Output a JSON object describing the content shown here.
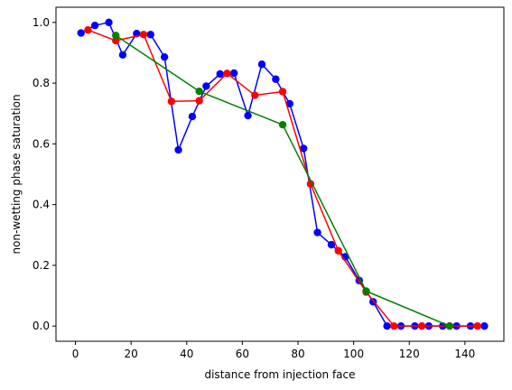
{
  "chart_data": {
    "type": "line",
    "title": "",
    "xlabel": "distance from injection face",
    "ylabel": "non-wetting phase saturation",
    "xlim": [
      -7,
      154
    ],
    "ylim": [
      -0.05,
      1.05
    ],
    "xticks": [
      0,
      20,
      40,
      60,
      80,
      100,
      120,
      140
    ],
    "yticks": [
      0.0,
      0.2,
      0.4,
      0.6,
      0.8,
      1.0
    ],
    "xtick_labels": [
      "0",
      "20",
      "40",
      "60",
      "80",
      "100",
      "120",
      "140"
    ],
    "ytick_labels": [
      "0.0",
      "0.2",
      "0.4",
      "0.6",
      "0.8",
      "1.0"
    ],
    "grid": false,
    "legend": "none",
    "series": [
      {
        "color": "#0000ff",
        "x": [
          2,
          7,
          12,
          17,
          22,
          27,
          32,
          37,
          42,
          47,
          52,
          57,
          62,
          67,
          72,
          77,
          82,
          87,
          92,
          97,
          102,
          107,
          112,
          117,
          122,
          127,
          132,
          137,
          142,
          147
        ],
        "y": [
          0.965,
          0.99,
          1.0,
          0.893,
          0.963,
          0.96,
          0.886,
          0.58,
          0.69,
          0.79,
          0.83,
          0.833,
          0.693,
          0.862,
          0.813,
          0.732,
          0.585,
          0.308,
          0.268,
          0.228,
          0.15,
          0.08,
          0.0,
          0.0,
          0.0,
          0.0,
          0.0,
          0.0,
          0.0,
          0.0
        ]
      },
      {
        "color": "#ff0000",
        "x": [
          4.5,
          14.5,
          24.5,
          34.5,
          44.5,
          54.5,
          64.5,
          74.5,
          84.5,
          94.5,
          104.5,
          114.5,
          124.5,
          134.5,
          144.5
        ],
        "y": [
          0.975,
          0.94,
          0.96,
          0.74,
          0.742,
          0.832,
          0.76,
          0.772,
          0.468,
          0.248,
          0.112,
          0.0,
          0.0,
          0.0,
          0.0
        ]
      },
      {
        "color": "#008000",
        "x": [
          14.5,
          44.5,
          74.5,
          104.5,
          134.5
        ],
        "y": [
          0.957,
          0.773,
          0.663,
          0.115,
          0.0
        ]
      }
    ]
  }
}
